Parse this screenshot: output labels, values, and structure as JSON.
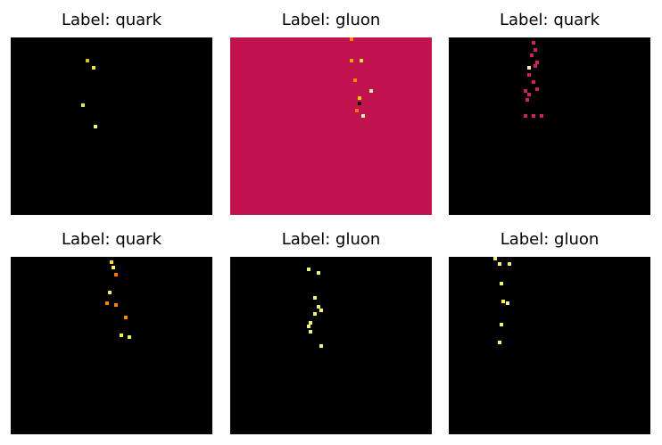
{
  "figure": {
    "panels": [
      {
        "title": "Label: quark",
        "background": "#000000",
        "hits": [
          [
            0.38,
            0.12,
            "#d9c02a"
          ],
          [
            0.41,
            0.16,
            "#f2e63c"
          ],
          [
            0.36,
            0.37,
            "#e8e35a"
          ],
          [
            0.42,
            0.49,
            "#f2f07a"
          ]
        ]
      },
      {
        "title": "Label: gluon",
        "background": "#c1134f",
        "hits": [
          [
            0.6,
            0.0,
            "#ff8800"
          ],
          [
            0.6,
            0.12,
            "#ffaa00"
          ],
          [
            0.65,
            0.12,
            "#ffdd44"
          ],
          [
            0.62,
            0.23,
            "#ff8800"
          ],
          [
            0.7,
            0.29,
            "#fff2b0"
          ],
          [
            0.64,
            0.33,
            "#ffcc00"
          ],
          [
            0.64,
            0.36,
            "#111111"
          ],
          [
            0.63,
            0.4,
            "#ff7700"
          ],
          [
            0.66,
            0.43,
            "#fff2b0"
          ]
        ]
      },
      {
        "title": "Label: quark",
        "background": "#000000",
        "hits": [
          [
            0.42,
            0.02,
            "#cc2266"
          ],
          [
            0.43,
            0.06,
            "#cc2266"
          ],
          [
            0.41,
            0.09,
            "#cc2266"
          ],
          [
            0.44,
            0.13,
            "#cc2266"
          ],
          [
            0.4,
            0.16,
            "#ffee88"
          ],
          [
            0.43,
            0.15,
            "#cc2266"
          ],
          [
            0.4,
            0.2,
            "#cc2266"
          ],
          [
            0.42,
            0.24,
            "#cc2266"
          ],
          [
            0.38,
            0.29,
            "#cc2266"
          ],
          [
            0.4,
            0.31,
            "#cc2266"
          ],
          [
            0.44,
            0.28,
            "#cc2266"
          ],
          [
            0.39,
            0.34,
            "#cc2266"
          ],
          [
            0.38,
            0.43,
            "#cc2266"
          ],
          [
            0.42,
            0.43,
            "#cc2266"
          ],
          [
            0.46,
            0.43,
            "#cc2266"
          ]
        ]
      },
      {
        "title": "Label: quark",
        "background": "#000000",
        "hits": [
          [
            0.5,
            0.02,
            "#ffdd33"
          ],
          [
            0.51,
            0.05,
            "#ffee55"
          ],
          [
            0.52,
            0.09,
            "#ff7700"
          ],
          [
            0.49,
            0.19,
            "#ffee66"
          ],
          [
            0.48,
            0.25,
            "#ff8800"
          ],
          [
            0.52,
            0.26,
            "#ff8800"
          ],
          [
            0.57,
            0.33,
            "#ff8800"
          ],
          [
            0.55,
            0.43,
            "#eeee55"
          ],
          [
            0.59,
            0.44,
            "#eeee55"
          ]
        ]
      },
      {
        "title": "Label: gluon",
        "background": "#000000",
        "hits": [
          [
            0.39,
            0.06,
            "#f2f07a"
          ],
          [
            0.44,
            0.08,
            "#f2f07a"
          ],
          [
            0.42,
            0.22,
            "#f2f07a"
          ],
          [
            0.44,
            0.27,
            "#f2f07a"
          ],
          [
            0.45,
            0.29,
            "#f2f07a"
          ],
          [
            0.42,
            0.31,
            "#f2f07a"
          ],
          [
            0.4,
            0.36,
            "#f2f07a"
          ],
          [
            0.39,
            0.38,
            "#f2f07a"
          ],
          [
            0.4,
            0.41,
            "#f2f07a"
          ],
          [
            0.45,
            0.49,
            "#f2f07a"
          ]
        ]
      },
      {
        "title": "Label: gluon",
        "background": "#000000",
        "hits": [
          [
            0.23,
            0.0,
            "#f2f07a"
          ],
          [
            0.25,
            0.03,
            "#f2f07a"
          ],
          [
            0.3,
            0.03,
            "#f2f07a"
          ],
          [
            0.26,
            0.14,
            "#f2f07a"
          ],
          [
            0.27,
            0.24,
            "#ffee44"
          ],
          [
            0.29,
            0.25,
            "#f2f07a"
          ],
          [
            0.26,
            0.37,
            "#f2f07a"
          ],
          [
            0.25,
            0.47,
            "#f2f07a"
          ]
        ]
      }
    ]
  }
}
